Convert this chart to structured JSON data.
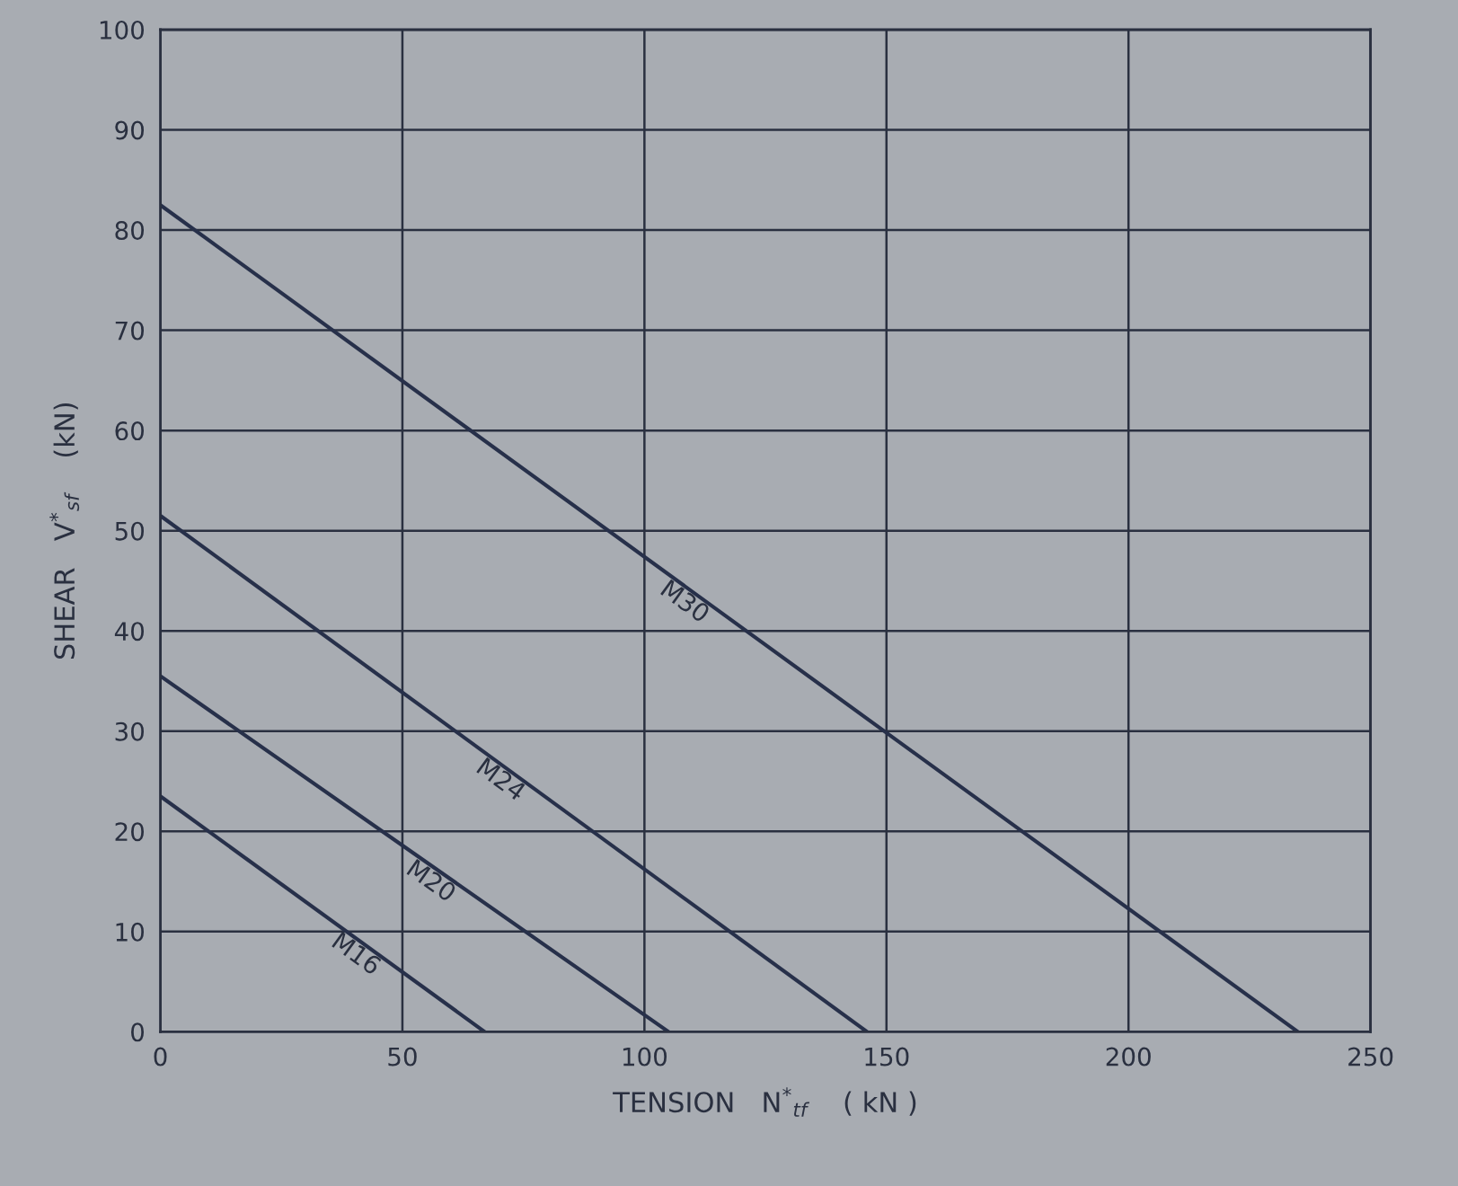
{
  "chart_data": {
    "type": "line",
    "xlabel": "TENSION   N$^{*}$$_{tf}$    ( kN )",
    "ylabel": "SHEAR   V$^{*}$$_{sf}$    (kN)",
    "series": [
      {
        "name": "M30",
        "color": "#27304a",
        "x": [
          0,
          235
        ],
        "values": [
          82.5,
          0
        ]
      },
      {
        "name": "M24",
        "color": "#27304a",
        "x": [
          0,
          146
        ],
        "values": [
          51.5,
          0
        ]
      },
      {
        "name": "M20",
        "color": "#27304a",
        "x": [
          0,
          105
        ],
        "values": [
          35.5,
          0
        ]
      },
      {
        "name": "M16",
        "color": "#27304a",
        "x": [
          0,
          67
        ],
        "values": [
          23.5,
          0
        ]
      }
    ],
    "xlim": [
      0,
      250
    ],
    "xticks": [
      0,
      50,
      100,
      150,
      200,
      250
    ],
    "ylim": [
      0,
      100
    ],
    "yticks": [
      0,
      10,
      20,
      30,
      40,
      50,
      60,
      70,
      80,
      90,
      100
    ],
    "grid": true,
    "legend": false,
    "marker": "none",
    "line_style": "solid"
  }
}
